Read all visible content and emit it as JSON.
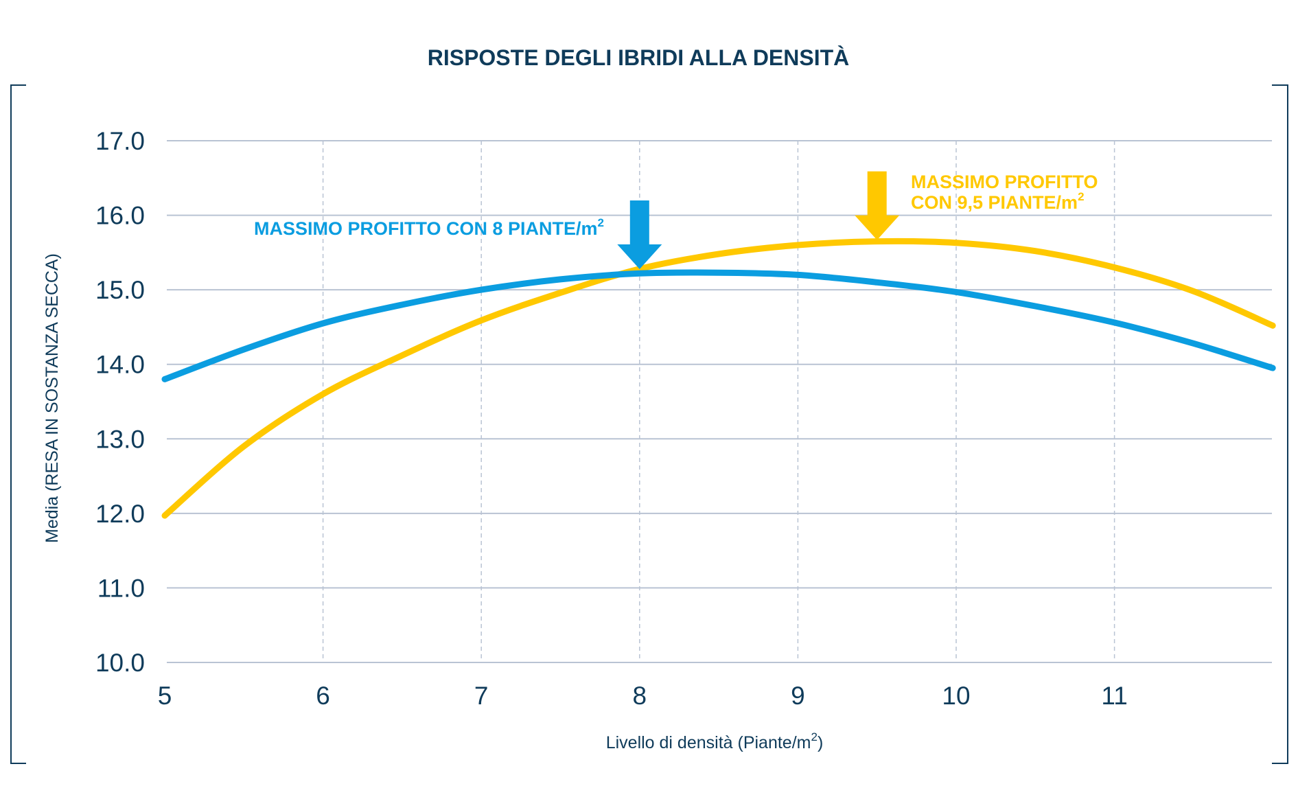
{
  "colors": {
    "text": "#0f3b5a",
    "grid": "#b9c3d3",
    "blue_series": "#0b9de0",
    "yellow_series": "#ffc800",
    "frame": "#0f3b5a"
  },
  "chart_data": {
    "type": "line",
    "title": "RISPOSTE DEGLI IBRIDI ALLA DENSITÀ",
    "xlabel": "Livello di densità (Piante/m",
    "xlabel_sup": "2",
    "xlabel_end": ")",
    "ylabel": "Media (RESA IN SOSTANZA SECCA)",
    "xlim": [
      5,
      12
    ],
    "ylim": [
      10,
      17
    ],
    "x_ticks": [
      5,
      6,
      7,
      8,
      9,
      10,
      11
    ],
    "x_tick_labels": [
      "5",
      "6",
      "7",
      "8",
      "9",
      "10",
      "11"
    ],
    "y_ticks": [
      10,
      11,
      12,
      13,
      14,
      15,
      16,
      17
    ],
    "y_tick_labels": [
      "10.0",
      "11.0",
      "12.0",
      "13.0",
      "14.0",
      "15.0",
      "16.0",
      "17.0"
    ],
    "grid": true,
    "series": [
      {
        "color": "#0b9de0",
        "x": [
          5,
          5.5,
          6,
          6.5,
          7,
          7.5,
          8,
          8.5,
          9,
          9.5,
          10,
          10.5,
          11,
          11.5,
          12
        ],
        "y": [
          13.8,
          14.2,
          14.55,
          14.8,
          15.0,
          15.14,
          15.22,
          15.23,
          15.2,
          15.1,
          14.97,
          14.78,
          14.56,
          14.28,
          13.95
        ]
      },
      {
        "color": "#ffc800",
        "x": [
          5,
          5.5,
          6,
          6.5,
          7,
          7.5,
          8,
          8.5,
          9,
          9.5,
          10,
          10.5,
          11,
          11.5,
          12
        ],
        "y": [
          11.97,
          12.9,
          13.6,
          14.12,
          14.59,
          14.96,
          15.28,
          15.48,
          15.6,
          15.65,
          15.63,
          15.52,
          15.3,
          14.98,
          14.52
        ]
      }
    ],
    "annotations": [
      {
        "lines": [
          "MASSIMO PROFITTO CON 8 PIANTE/m"
        ],
        "sup": "2",
        "color": "#0b9de0",
        "arrow_x": 8,
        "arrow_tip_y": 15.25
      },
      {
        "lines": [
          "MASSIMO PROFITTO",
          "CON 9,5 PIANTE/m"
        ],
        "sup": "2",
        "color": "#ffc800",
        "arrow_x": 9.5,
        "arrow_tip_y": 15.65
      }
    ]
  }
}
